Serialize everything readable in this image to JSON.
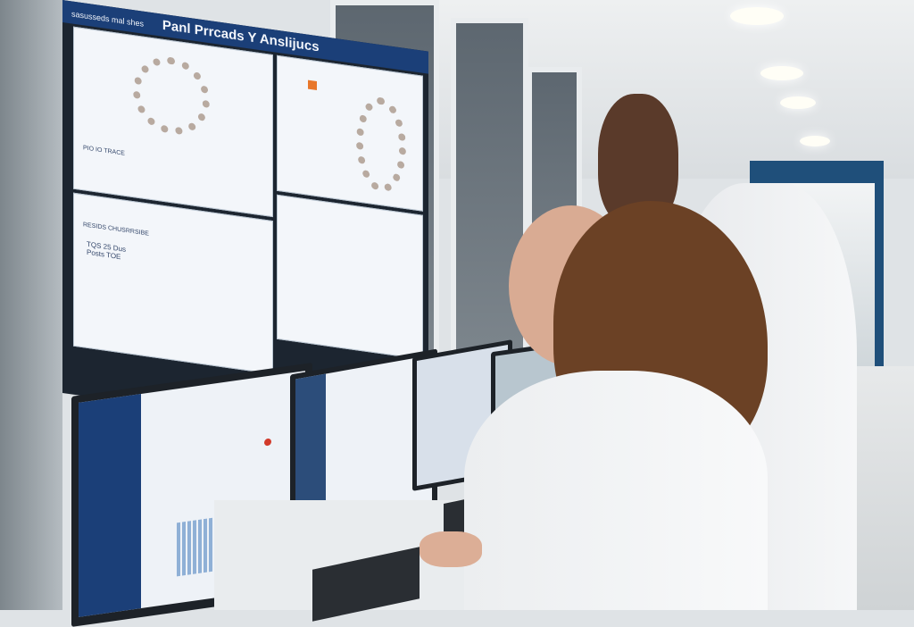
{
  "scene": {
    "wall_screen_title": "Panl Prrcads Y Anslijucs",
    "wall_screen_subtitle": "sasusseds mal shes",
    "panel_labels": [
      "PIO IO TRACE",
      "RESIDS CHUSRRSIBE",
      "TQS 25 Dus Posts TOE"
    ],
    "colors": {
      "screen_blue": "#1b3f78",
      "lab_coat": "#f4f5f6",
      "accent_red": "#d23a2a",
      "wall_blue": "#1f4f7a"
    }
  }
}
